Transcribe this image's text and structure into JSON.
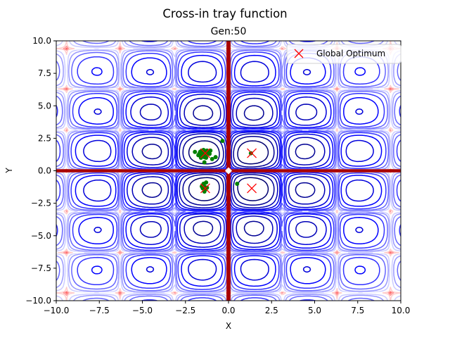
{
  "chart_data": {
    "type": "contour",
    "title": "Cross-in tray function",
    "subtitle": "Gen:50",
    "xlabel": "X",
    "ylabel": "Y",
    "xlim": [
      -10,
      10
    ],
    "ylim": [
      -10,
      10
    ],
    "xticks": [
      "−10.0",
      "−7.5",
      "−5.0",
      "−2.5",
      "0.0",
      "2.5",
      "5.0",
      "7.5",
      "10.0"
    ],
    "yticks": [
      "−10.0",
      "−7.5",
      "−5.0",
      "−2.5",
      "0.0",
      "2.5",
      "5.0",
      "7.5",
      "10.0"
    ],
    "xtick_values": [
      -10,
      -7.5,
      -5,
      -2.5,
      0,
      2.5,
      5,
      7.5,
      10
    ],
    "ytick_values": [
      -10,
      -7.5,
      -5,
      -2.5,
      0,
      2.5,
      5,
      7.5,
      10
    ],
    "grid": false,
    "legend": {
      "placement": "top-right",
      "entries": [
        "Global Optimum"
      ]
    },
    "global_optima": [
      [
        1.35,
        1.35
      ],
      [
        1.35,
        -1.35
      ],
      [
        -1.35,
        1.35
      ],
      [
        -1.35,
        -1.35
      ]
    ],
    "population": [
      [
        -1.6,
        1.5
      ],
      [
        -1.5,
        1.3
      ],
      [
        -1.4,
        1.45
      ],
      [
        -1.3,
        1.2
      ],
      [
        -1.7,
        1.3
      ],
      [
        -1.55,
        1.1
      ],
      [
        -1.2,
        1.4
      ],
      [
        -1.45,
        1.6
      ],
      [
        -1.25,
        1.55
      ],
      [
        -1.65,
        1.45
      ],
      [
        -1.35,
        1.25
      ],
      [
        -1.5,
        1.55
      ],
      [
        -1.1,
        1.3
      ],
      [
        -1.75,
        1.2
      ],
      [
        -1.4,
        1.05
      ],
      [
        -1.05,
        1.55
      ],
      [
        -1.95,
        1.45
      ],
      [
        -1.4,
        0.65
      ],
      [
        -0.95,
        0.9
      ],
      [
        -0.75,
        1.05
      ],
      [
        -0.35,
        2.3
      ],
      [
        -1.6,
        1.0
      ],
      [
        -1.3,
        1.0
      ],
      [
        -1.4,
        -1.2
      ],
      [
        -1.35,
        -1.45
      ],
      [
        -1.45,
        -1.0
      ],
      [
        -1.3,
        -0.9
      ],
      [
        -1.5,
        -1.35
      ],
      [
        -1.25,
        -1.3
      ],
      [
        -1.4,
        -1.6
      ],
      [
        -1.55,
        -1.2
      ],
      [
        0.5,
        -1.0
      ],
      [
        1.3,
        1.35
      ]
    ],
    "colors": {
      "low": "#0000cc",
      "mid": "#ffffff",
      "high": "#b00000",
      "population": "#008000",
      "optimum": "#ff0000"
    }
  }
}
